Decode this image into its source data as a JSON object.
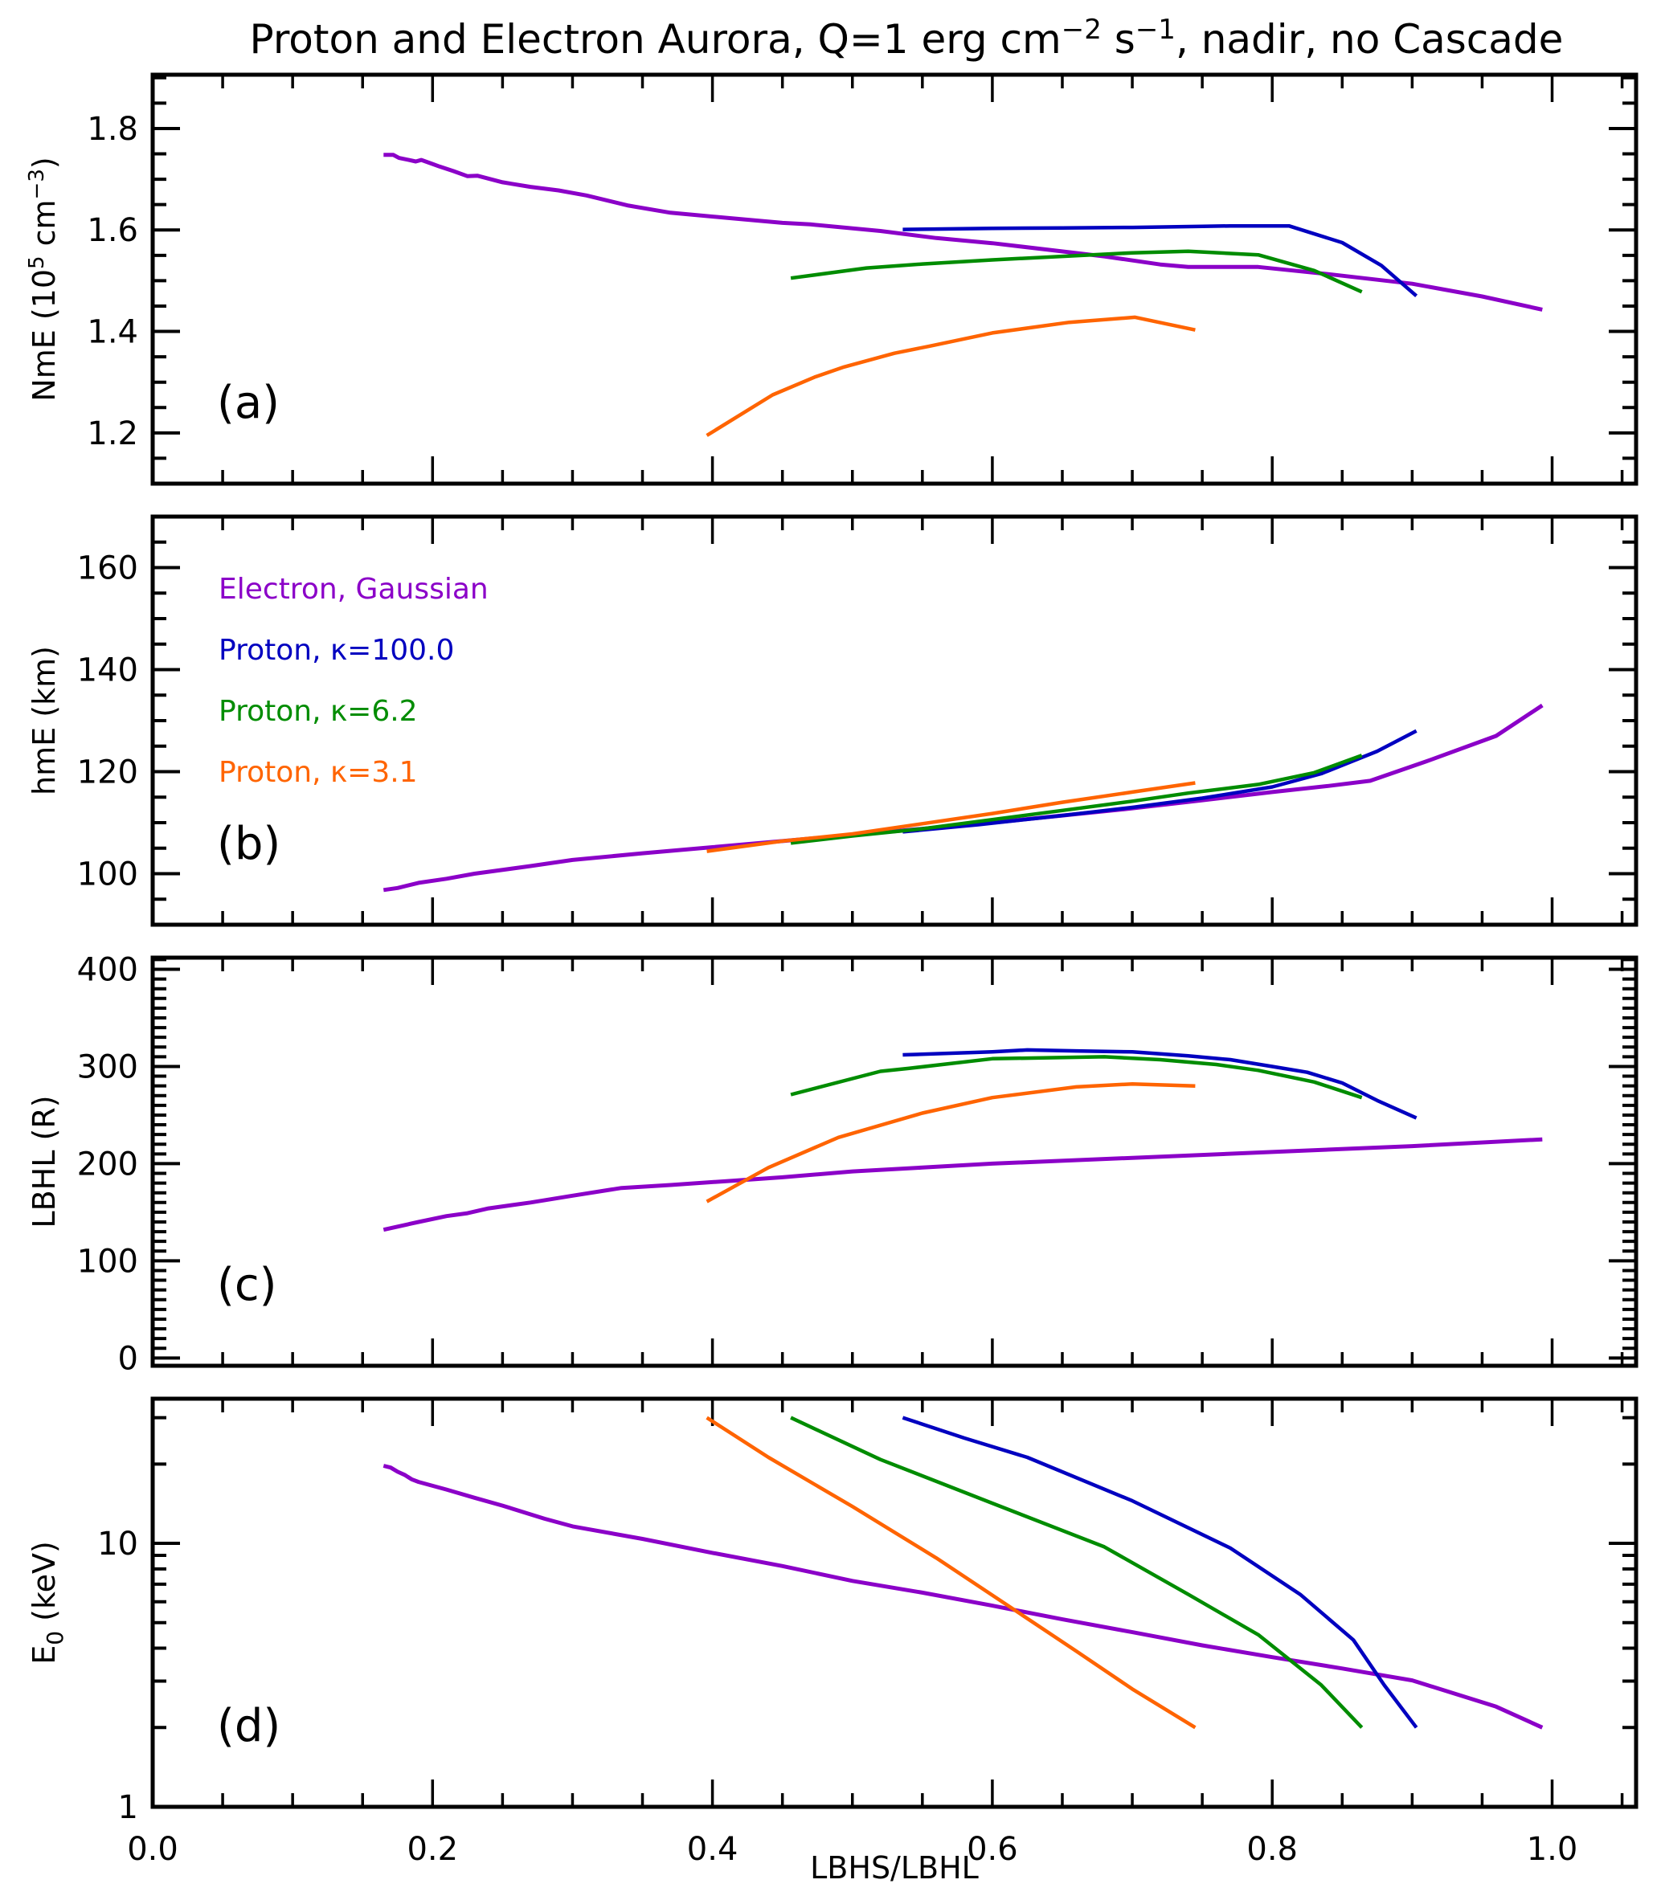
{
  "chart_data": {
    "type": "line",
    "title": {
      "prefix": "Proton and Electron Aurora, Q=1 erg cm",
      "sup1": "−2",
      "mid": " s",
      "sup2": "−1",
      "suffix": ", nadir, no Cascade"
    },
    "xlabel": "LBHS/LBHL",
    "xlim": [
      0.0,
      1.06
    ],
    "xticks": [
      0.0,
      0.2,
      0.4,
      0.6,
      0.8,
      1.0
    ],
    "xtick_labels": [
      "0.0",
      "0.2",
      "0.4",
      "0.6",
      "0.8",
      "1.0"
    ],
    "x_minor_step": 0.05,
    "grid": false,
    "legend": {
      "placement": "top-left of panel (b)",
      "entries": [
        {
          "series": "electron_gaussian",
          "label": "Electron, Gaussian",
          "color": "#8B00C8"
        },
        {
          "series": "proton_k100",
          "label": "Proton, κ=100.0",
          "color": "#0000C0"
        },
        {
          "series": "proton_k6_2",
          "label": "Proton, κ=6.2",
          "color": "#008C00"
        },
        {
          "series": "proton_k3_1",
          "label": "Proton, κ=3.1",
          "color": "#FF6400"
        }
      ]
    },
    "series_colors": {
      "electron_gaussian": "#8B00C8",
      "proton_k100": "#0000C0",
      "proton_k6_2": "#008C00",
      "proton_k3_1": "#FF6400"
    },
    "panels": [
      {
        "id": "a",
        "tag": "(a)",
        "ylabel_main": "NmE (10",
        "ylabel_sup": "5",
        "ylabel_mid": " cm",
        "ylabel_sup2": "−3",
        "ylabel_end": ")",
        "yscale": "linear",
        "ylim": [
          1.1,
          1.906
        ],
        "yticks": [
          1.2,
          1.4,
          1.6,
          1.8
        ],
        "ytick_labels": [
          "1.2",
          "1.4",
          "1.6",
          "1.8"
        ],
        "y_minor_step": 0.05,
        "series": {
          "electron_gaussian": {
            "x": [
              0.165,
              0.172,
              0.176,
              0.183,
              0.188,
              0.192,
              0.2,
              0.205,
              0.215,
              0.225,
              0.232,
              0.25,
              0.27,
              0.29,
              0.31,
              0.34,
              0.37,
              0.41,
              0.45,
              0.47,
              0.52,
              0.56,
              0.6,
              0.64,
              0.68,
              0.72,
              0.74,
              0.79,
              0.84,
              0.9,
              0.95,
              0.993
            ],
            "y": [
              1.748,
              1.748,
              1.742,
              1.738,
              1.735,
              1.738,
              1.73,
              1.725,
              1.716,
              1.706,
              1.707,
              1.694,
              1.685,
              1.678,
              1.668,
              1.648,
              1.634,
              1.624,
              1.614,
              1.611,
              1.598,
              1.584,
              1.574,
              1.561,
              1.548,
              1.532,
              1.527,
              1.527,
              1.513,
              1.494,
              1.469,
              1.443
            ]
          },
          "proton_k100": {
            "x": [
              0.536,
              0.6,
              0.65,
              0.7,
              0.75,
              0.77,
              0.79,
              0.812,
              0.85,
              0.878,
              0.903
            ],
            "y": [
              1.601,
              1.603,
              1.604,
              1.605,
              1.607,
              1.608,
              1.608,
              1.608,
              1.575,
              1.53,
              1.47
            ]
          },
          "proton_k6_2": {
            "x": [
              0.456,
              0.51,
              0.55,
              0.6,
              0.65,
              0.7,
              0.74,
              0.79,
              0.83,
              0.864
            ],
            "y": [
              1.505,
              1.525,
              1.533,
              1.541,
              1.548,
              1.555,
              1.558,
              1.551,
              1.52,
              1.478
            ]
          },
          "proton_k3_1": {
            "x": [
              0.396,
              0.443,
              0.473,
              0.494,
              0.53,
              0.555,
              0.6,
              0.655,
              0.702,
              0.745
            ],
            "y": [
              1.195,
              1.275,
              1.31,
              1.33,
              1.357,
              1.371,
              1.397,
              1.418,
              1.428,
              1.403
            ]
          }
        }
      },
      {
        "id": "b",
        "tag": "(b)",
        "ylabel_main": "hmE (km)",
        "yscale": "linear",
        "ylim": [
          90,
          170
        ],
        "yticks": [
          100,
          120,
          140,
          160
        ],
        "ytick_labels": [
          "100",
          "120",
          "140",
          "160"
        ],
        "y_minor_step": 5,
        "series": {
          "electron_gaussian": {
            "x": [
              0.165,
              0.175,
              0.19,
              0.21,
              0.23,
              0.27,
              0.3,
              0.35,
              0.4,
              0.45,
              0.5,
              0.55,
              0.6,
              0.65,
              0.7,
              0.75,
              0.8,
              0.84,
              0.87,
              0.91,
              0.96,
              0.993
            ],
            "y": [
              96.8,
              97.2,
              98.2,
              99.0,
              100.0,
              101.5,
              102.7,
              104.0,
              105.2,
              106.4,
              107.6,
              108.8,
              110.0,
              111.4,
              112.8,
              114.4,
              116.0,
              117.2,
              118.2,
              122.0,
              127.0,
              133.0
            ]
          },
          "proton_k100": {
            "x": [
              0.536,
              0.59,
              0.65,
              0.7,
              0.75,
              0.8,
              0.835,
              0.875,
              0.903
            ],
            "y": [
              108.2,
              109.6,
              111.4,
              113.0,
              114.8,
              117.0,
              119.6,
              124.0,
              128.0
            ]
          },
          "proton_k6_2": {
            "x": [
              0.456,
              0.5,
              0.55,
              0.6,
              0.65,
              0.7,
              0.74,
              0.79,
              0.83,
              0.864
            ],
            "y": [
              106.0,
              107.4,
              108.8,
              110.6,
              112.4,
              114.2,
              115.8,
              117.5,
              119.8,
              123.2
            ]
          },
          "proton_k3_1": {
            "x": [
              0.396,
              0.45,
              0.5,
              0.55,
              0.6,
              0.65,
              0.7,
              0.745
            ],
            "y": [
              104.4,
              106.4,
              107.8,
              109.8,
              111.8,
              114.0,
              116.0,
              117.8
            ]
          }
        }
      },
      {
        "id": "c",
        "tag": "(c)",
        "ylabel_main": "LBHL (R)",
        "yscale": "linear",
        "ylim": [
          -8,
          412
        ],
        "yticks": [
          0,
          100,
          200,
          300,
          400
        ],
        "ytick_labels": [
          "0",
          "100",
          "200",
          "300",
          "400"
        ],
        "y_minor_step": 10,
        "series": {
          "electron_gaussian": {
            "x": [
              0.165,
              0.19,
              0.21,
              0.225,
              0.24,
              0.27,
              0.3,
              0.335,
              0.37,
              0.41,
              0.45,
              0.5,
              0.55,
              0.6,
              0.7,
              0.8,
              0.9,
              0.993
            ],
            "y": [
              132,
              140,
              146,
              149,
              154,
              160,
              167,
              175,
              178,
              182,
              186,
              192,
              196,
              200,
              206,
              212,
              218,
              225
            ]
          },
          "proton_k100": {
            "x": [
              0.536,
              0.6,
              0.625,
              0.66,
              0.7,
              0.74,
              0.77,
              0.8,
              0.825,
              0.85,
              0.875,
              0.903
            ],
            "y": [
              312,
              315,
              317,
              316,
              315,
              311,
              307,
              300,
              294,
              283,
              265,
              247
            ]
          },
          "proton_k6_2": {
            "x": [
              0.456,
              0.52,
              0.54,
              0.6,
              0.64,
              0.68,
              0.72,
              0.76,
              0.79,
              0.83,
              0.864
            ],
            "y": [
              271,
              295,
              298,
              308,
              309,
              310,
              307,
              302,
              296,
              284,
              268
            ]
          },
          "proton_k3_1": {
            "x": [
              0.396,
              0.44,
              0.49,
              0.55,
              0.6,
              0.66,
              0.7,
              0.745
            ],
            "y": [
              161,
              196,
              227,
              252,
              268,
              279,
              282,
              280
            ]
          }
        }
      },
      {
        "id": "d",
        "tag": "(d)",
        "ylabel_main": "E",
        "ylabel_sub": "0",
        "ylabel_end": " (keV)",
        "yscale": "log",
        "ylim": [
          1,
          35.4
        ],
        "yticks": [
          1,
          10
        ],
        "ytick_labels": [
          "1",
          "10"
        ],
        "y_minor_values": [
          2,
          3,
          4,
          5,
          6,
          7,
          8,
          9,
          20,
          30
        ],
        "series": {
          "electron_gaussian": {
            "x": [
              0.165,
              0.17,
              0.175,
              0.18,
              0.185,
              0.19,
              0.21,
              0.23,
              0.25,
              0.28,
              0.3,
              0.35,
              0.4,
              0.45,
              0.5,
              0.55,
              0.6,
              0.65,
              0.7,
              0.75,
              0.8,
              0.85,
              0.9,
              0.915,
              0.96,
              0.993
            ],
            "y": [
              19.7,
              19.4,
              18.7,
              18.2,
              17.5,
              17.1,
              16.0,
              14.9,
              13.9,
              12.4,
              11.6,
              10.4,
              9.2,
              8.2,
              7.2,
              6.5,
              5.8,
              5.15,
              4.6,
              4.1,
              3.7,
              3.35,
              3.02,
              2.85,
              2.4,
              2.0
            ]
          },
          "proton_k100": {
            "x": [
              0.536,
              0.58,
              0.625,
              0.7,
              0.77,
              0.82,
              0.858,
              0.88,
              0.903
            ],
            "y": [
              30.0,
              25.1,
              21.2,
              14.5,
              9.6,
              6.4,
              4.3,
              2.9,
              2.0
            ]
          },
          "proton_k6_2": {
            "x": [
              0.456,
              0.52,
              0.6,
              0.68,
              0.74,
              0.79,
              0.835,
              0.864
            ],
            "y": [
              30.0,
              20.8,
              14.2,
              9.7,
              6.4,
              4.5,
              2.9,
              2.0
            ]
          },
          "proton_k3_1": {
            "x": [
              0.396,
              0.44,
              0.5,
              0.56,
              0.62,
              0.66,
              0.7,
              0.745
            ],
            "y": [
              30.0,
              21.2,
              13.8,
              8.8,
              5.4,
              3.9,
              2.8,
              2.0
            ]
          }
        }
      }
    ]
  }
}
